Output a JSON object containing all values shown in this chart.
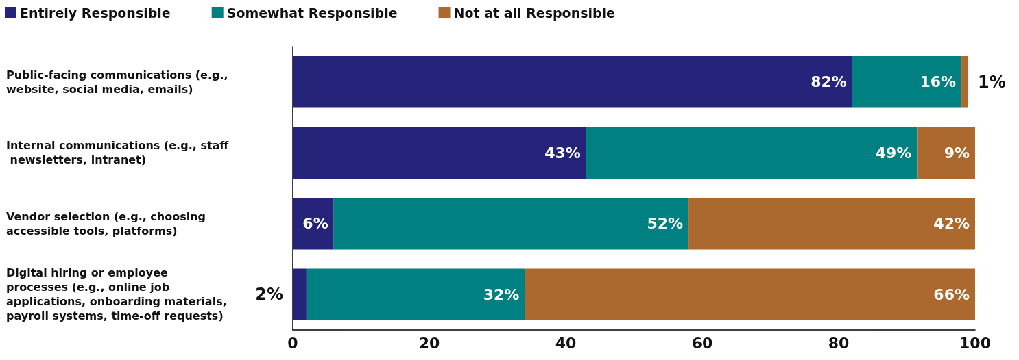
{
  "chart_data": {
    "type": "bar",
    "orientation": "horizontal",
    "stacked": true,
    "legend": "top left",
    "categories": [
      "Public-facing communications (e.g., website, social media, emails)",
      "Internal communications (e.g., staff newsletters, intranet)",
      "Vendor selection (e.g., choosing accessible tools, platforms)",
      "Digital hiring or employee processes (e.g., online job applications, onboarding materials, payroll systems, time-off requests)"
    ],
    "xlim": [
      0,
      100
    ],
    "xticks": [
      0,
      20,
      40,
      60,
      80,
      100
    ],
    "series": [
      {
        "name": "Entirely Responsible",
        "color": "#26237a",
        "values": [
          82,
          43,
          6,
          2
        ],
        "value_labels": [
          "82%",
          "43%",
          "6%",
          "2%"
        ]
      },
      {
        "name": "Somewhat Responsible",
        "color": "#008080",
        "values": [
          16,
          48.5,
          52,
          32
        ],
        "value_labels": [
          "16%",
          "49%",
          "52%",
          "32%"
        ]
      },
      {
        "name": "Not at all Responsible",
        "color": "#ab692d",
        "values": [
          1,
          8.5,
          42,
          66
        ],
        "value_labels": [
          "1%",
          "9%",
          "42%",
          "66%"
        ]
      }
    ]
  }
}
